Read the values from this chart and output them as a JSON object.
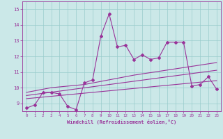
{
  "xlabel": "Windchill (Refroidissement éolien,°C)",
  "bg_color": "#cbe8e8",
  "grid_color": "#99cccc",
  "line_color": "#993399",
  "x_values": [
    0,
    1,
    2,
    3,
    4,
    5,
    6,
    7,
    8,
    9,
    10,
    11,
    12,
    13,
    14,
    15,
    16,
    17,
    18,
    19,
    20,
    21,
    22,
    23
  ],
  "series1": [
    8.7,
    8.9,
    9.7,
    9.7,
    9.6,
    8.8,
    8.6,
    10.3,
    10.5,
    13.3,
    14.7,
    12.6,
    12.7,
    11.8,
    12.1,
    11.8,
    11.9,
    12.9,
    12.9,
    12.9,
    10.1,
    10.2,
    10.7,
    9.9
  ],
  "series2": [
    9.3,
    9.35,
    9.4,
    9.45,
    9.5,
    9.55,
    9.6,
    9.65,
    9.7,
    9.75,
    9.8,
    9.85,
    9.9,
    9.95,
    10.0,
    10.05,
    10.1,
    10.15,
    10.2,
    10.25,
    10.3,
    10.35,
    10.4,
    10.45
  ],
  "series3": [
    9.5,
    9.57,
    9.64,
    9.71,
    9.78,
    9.85,
    9.92,
    9.99,
    10.06,
    10.13,
    10.2,
    10.27,
    10.34,
    10.41,
    10.48,
    10.55,
    10.62,
    10.69,
    10.76,
    10.83,
    10.9,
    10.97,
    11.04,
    11.11
  ],
  "series4": [
    9.7,
    9.8,
    9.9,
    10.0,
    10.05,
    10.1,
    10.15,
    10.2,
    10.3,
    10.4,
    10.5,
    10.6,
    10.7,
    10.8,
    10.88,
    10.96,
    11.04,
    11.12,
    11.2,
    11.28,
    11.36,
    11.44,
    11.52,
    11.6
  ],
  "ylim": [
    8.5,
    15.5
  ],
  "xlim": [
    -0.5,
    23.5
  ],
  "yticks": [
    9,
    10,
    11,
    12,
    13,
    14,
    15
  ],
  "xticks": [
    0,
    1,
    2,
    3,
    4,
    5,
    6,
    7,
    8,
    9,
    10,
    11,
    12,
    13,
    14,
    15,
    16,
    17,
    18,
    19,
    20,
    21,
    22,
    23
  ]
}
